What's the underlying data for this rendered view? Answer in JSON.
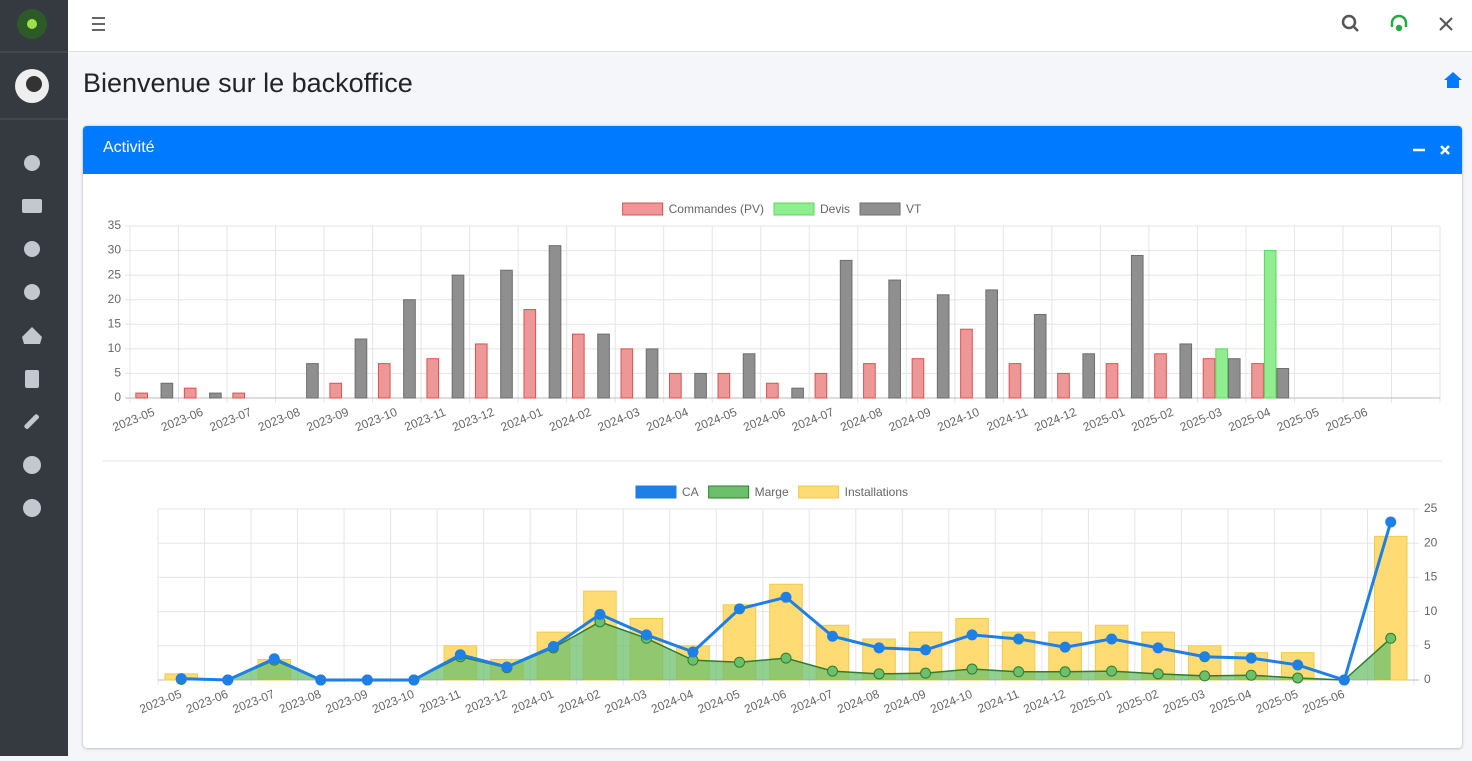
{
  "page": {
    "title": "Bienvenue sur le backoffice",
    "card_title": "Activité"
  },
  "chart_data": [
    {
      "type": "bar",
      "categories": [
        "2023-05",
        "2023-06",
        "2023-07",
        "2023-08",
        "2023-09",
        "2023-10",
        "2023-11",
        "2023-12",
        "2024-01",
        "2024-02",
        "2024-03",
        "2024-04",
        "2024-05",
        "2024-06",
        "2024-07",
        "2024-08",
        "2024-09",
        "2024-10",
        "2024-11",
        "2024-12",
        "2025-01",
        "2025-02",
        "2025-03",
        "2025-04",
        "2025-05",
        "2025-06",
        null
      ],
      "series": [
        {
          "name": "Commandes (PV)",
          "color": "#ee9799",
          "border": "#d9534f",
          "values": [
            1,
            2,
            1,
            0,
            3,
            7,
            8,
            11,
            18,
            13,
            10,
            5,
            5,
            3,
            5,
            7,
            8,
            14,
            7,
            5,
            7,
            9,
            8,
            7,
            0,
            0,
            0
          ]
        },
        {
          "name": "Devis",
          "color": "#90ee90",
          "border": "#5cd65c",
          "values": [
            0,
            0,
            0,
            0,
            0,
            0,
            0,
            0,
            0,
            0,
            0,
            0,
            0,
            0,
            0,
            0,
            0,
            0,
            0,
            0,
            0,
            0,
            10,
            30,
            0,
            0,
            0
          ]
        },
        {
          "name": "VT",
          "color": "#8f8f8f",
          "border": "#6e6e6e",
          "values": [
            3,
            1,
            0,
            7,
            12,
            20,
            25,
            26,
            31,
            13,
            10,
            5,
            9,
            2,
            28,
            24,
            21,
            22,
            17,
            9,
            29,
            11,
            8,
            6,
            0,
            0,
            0
          ]
        }
      ],
      "ylim": [
        0,
        35
      ],
      "yticks": [
        0,
        5,
        10,
        15,
        20,
        25,
        30,
        35
      ],
      "y_axis_position": "left",
      "grid": true,
      "legend": "top"
    },
    {
      "type": "mixed",
      "categories": [
        "2023-05",
        "2023-06",
        "2023-07",
        "2023-08",
        "2023-09",
        "2023-10",
        "2023-11",
        "2023-12",
        "2024-01",
        "2024-02",
        "2024-03",
        "2024-04",
        "2024-05",
        "2024-06",
        "2024-07",
        "2024-08",
        "2024-09",
        "2024-10",
        "2024-11",
        "2024-12",
        "2025-01",
        "2025-02",
        "2025-03",
        "2025-04",
        "2025-05",
        "2025-06",
        null
      ],
      "series": [
        {
          "name": "CA",
          "type": "line",
          "color": "#1e7fe6",
          "border": "#1e7fe6",
          "values": [
            0.2,
            0,
            3.1,
            0,
            0,
            0,
            3.7,
            1.9,
            4.9,
            9.6,
            6.6,
            4.1,
            10.4,
            12.1,
            6.4,
            4.7,
            4.4,
            6.6,
            6.0,
            4.8,
            6.0,
            4.7,
            3.4,
            3.2,
            2.2,
            0,
            23.1
          ]
        },
        {
          "name": "Marge",
          "type": "area",
          "color": "#6cc06c",
          "border": "#2f7d2f",
          "values": [
            0.1,
            0,
            2.9,
            0,
            0,
            0,
            3.4,
            1.8,
            4.7,
            8.5,
            6.1,
            2.9,
            2.6,
            3.2,
            1.3,
            0.9,
            1.0,
            1.6,
            1.2,
            1.2,
            1.3,
            0.9,
            0.6,
            0.7,
            0.3,
            0,
            6.1
          ]
        },
        {
          "name": "Installations",
          "type": "bar",
          "color": "#ffdc73",
          "border": "#f2c94c",
          "values": [
            0.9,
            0,
            3,
            0,
            0,
            0,
            5,
            3,
            7,
            13,
            9,
            5,
            11,
            14,
            8,
            6,
            7,
            9,
            7,
            7,
            8,
            7,
            5,
            4,
            4,
            0,
            21
          ]
        }
      ],
      "ylim": [
        0,
        25
      ],
      "yticks": [
        0,
        5,
        10,
        15,
        20,
        25
      ],
      "y_axis_position": "right",
      "grid": true,
      "legend": "top"
    }
  ]
}
